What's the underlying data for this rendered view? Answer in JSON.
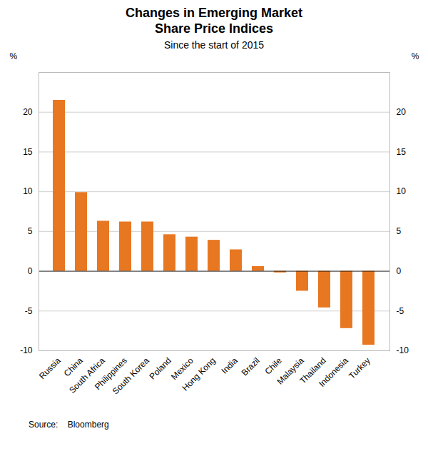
{
  "chart_data": {
    "type": "bar",
    "title": "Changes in Emerging Market\nShare Price Indices",
    "subtitle": "Since the start of 2015",
    "ylabel": "%",
    "y2label": "%",
    "source": "Source:    Bloomberg",
    "categories": [
      "Russia",
      "China",
      "South Africa",
      "Philippines",
      "South Korea",
      "Poland",
      "Mexico",
      "Hong Kong",
      "India",
      "Brazil",
      "Chile",
      "Malaysia",
      "Thailand",
      "Indonesia",
      "Turkey"
    ],
    "values": [
      21.5,
      9.9,
      6.3,
      6.2,
      6.2,
      4.6,
      4.3,
      3.9,
      2.7,
      0.6,
      -0.2,
      -2.5,
      -4.6,
      -7.2,
      -9.3
    ],
    "color": "#E87722",
    "ylim": [
      -10,
      25
    ],
    "yticks": [
      -10,
      -5,
      0,
      5,
      10,
      15,
      20
    ],
    "y2lim": [
      -10,
      25
    ],
    "y2ticks": [
      -10,
      -5,
      0,
      5,
      10,
      15,
      20
    ],
    "grid": true
  }
}
